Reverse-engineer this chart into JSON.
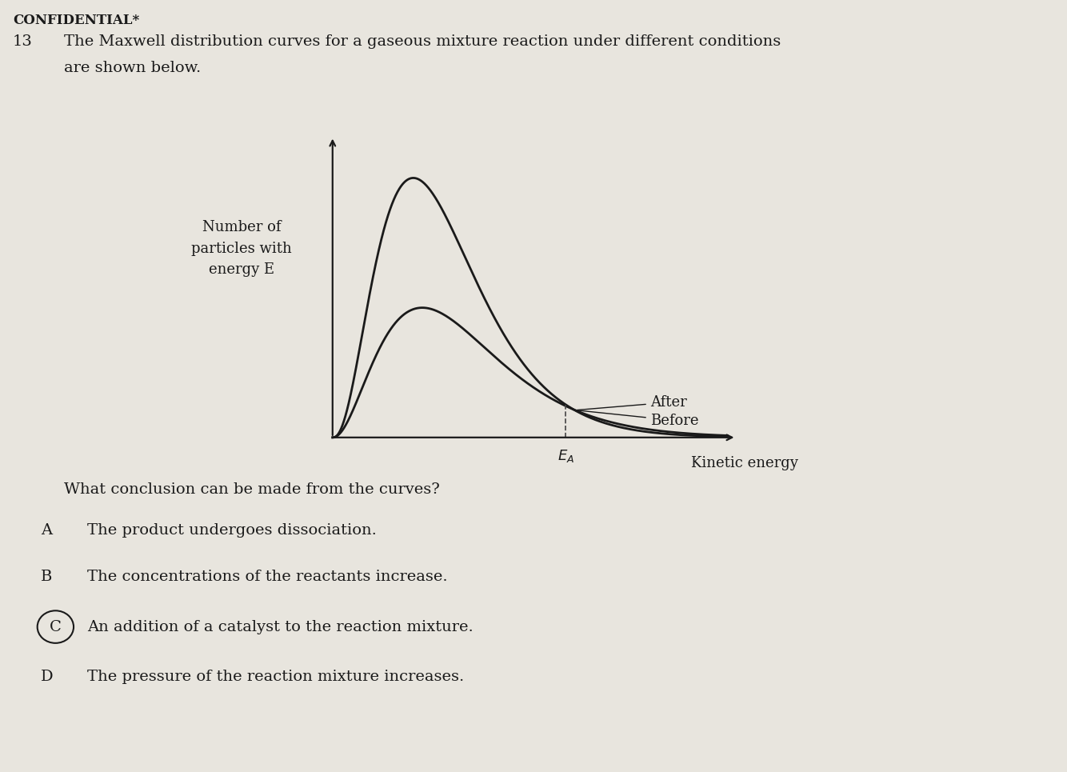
{
  "title_confidential": "CONFIDENTIAL*",
  "question_number": "13",
  "question_text_line1": "The Maxwell distribution curves for a gaseous mixture reaction under different conditions",
  "question_text_line2": "are shown below.",
  "ylabel_line1": "Number of",
  "ylabel_line2": "particles with",
  "ylabel_line3": "energy E",
  "xlabel": "Kinetic energy",
  "ea_label": "$E_A$",
  "legend_after": "After",
  "legend_before": "Before",
  "question_prompt": "What conclusion can be made from the curves?",
  "options": [
    {
      "label": "A",
      "text": "The product undergoes dissociation.",
      "circled": false
    },
    {
      "label": "B",
      "text": "The concentrations of the reactants increase.",
      "circled": false
    },
    {
      "label": "C",
      "text": "An addition of a catalyst to the reaction mixture.",
      "circled": true
    },
    {
      "label": "D",
      "text": "The pressure of the reaction mixture increases.",
      "circled": false
    }
  ],
  "bg_color": "#e8e5de",
  "curve_color": "#1a1a1a",
  "dashed_line_color": "#444444",
  "text_color": "#1a1a1a"
}
